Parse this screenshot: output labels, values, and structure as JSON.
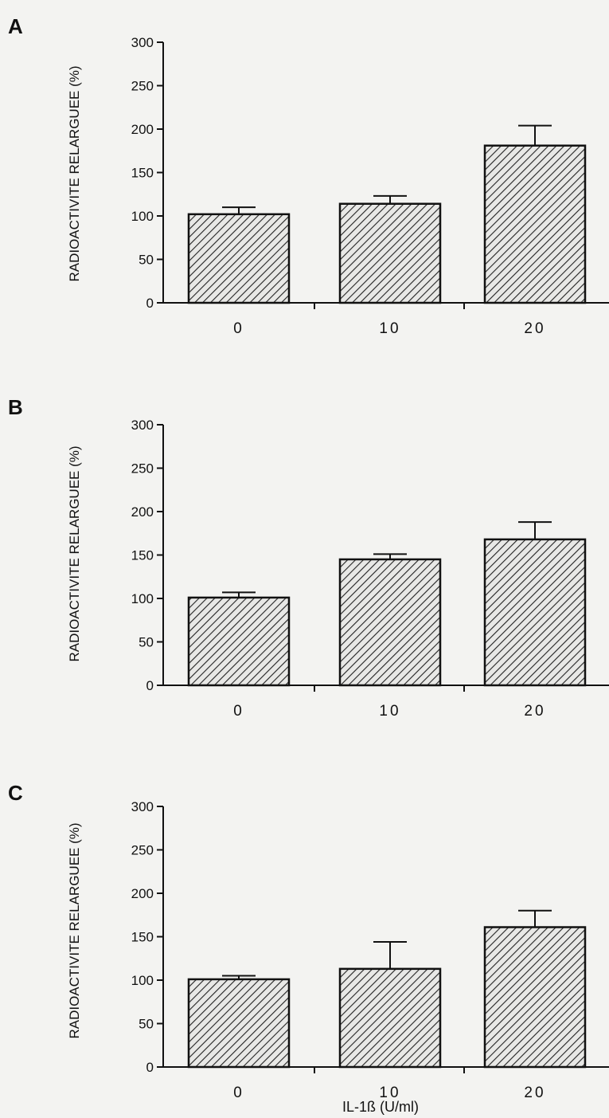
{
  "chart_data": [
    {
      "type": "bar",
      "panel": "A",
      "categories": [
        "0",
        "10",
        "20"
      ],
      "values": [
        102,
        114,
        181
      ],
      "errors": [
        8,
        9,
        23
      ],
      "ylabel": "RADIOACTIVITE RELARGUEE (%)",
      "xlabel": "",
      "ylim": [
        0,
        300
      ],
      "yticks": [
        0,
        50,
        100,
        150,
        200,
        250,
        300
      ],
      "pattern": "diagonal-hatch"
    },
    {
      "type": "bar",
      "panel": "B",
      "categories": [
        "0",
        "10",
        "20"
      ],
      "values": [
        101,
        145,
        168
      ],
      "errors": [
        6,
        6,
        20
      ],
      "ylabel": "RADIOACTIVITE RELARGUEE (%)",
      "xlabel": "",
      "ylim": [
        0,
        300
      ],
      "yticks": [
        0,
        50,
        100,
        150,
        200,
        250,
        300
      ],
      "pattern": "diagonal-hatch"
    },
    {
      "type": "bar",
      "panel": "C",
      "categories": [
        "0",
        "10",
        "20"
      ],
      "values": [
        101,
        113,
        161
      ],
      "errors": [
        4,
        31,
        19
      ],
      "ylabel": "RADIOACTIVITE RELARGUEE (%)",
      "xlabel": "IL-1ß  (U/ml)",
      "ylim": [
        0,
        300
      ],
      "yticks": [
        0,
        50,
        100,
        150,
        200,
        250,
        300
      ],
      "pattern": "diagonal-hatch"
    }
  ]
}
